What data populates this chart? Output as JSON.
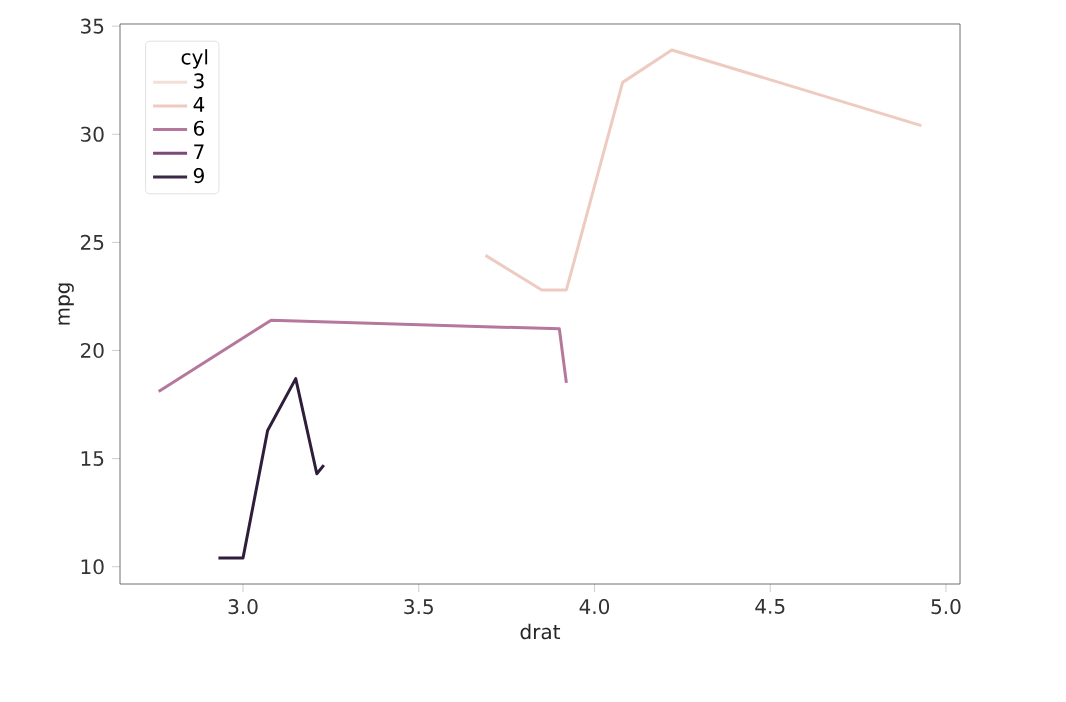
{
  "chart_data": {
    "type": "line",
    "xlabel": "drat",
    "ylabel": "mpg",
    "legend_title": "cyl",
    "legend": "top left",
    "grid": false,
    "xlim": [
      2.65,
      5.04
    ],
    "ylim": [
      9.2,
      35.1
    ],
    "xticks": [
      {
        "value": 3,
        "label": "3.0"
      },
      {
        "value": 3.5,
        "label": "3.5"
      },
      {
        "value": 4,
        "label": "4.0"
      },
      {
        "value": 4.5,
        "label": "4.5"
      },
      {
        "value": 5,
        "label": "5.0"
      }
    ],
    "yticks": [
      10,
      15,
      20,
      25,
      30,
      35
    ],
    "series": [
      {
        "name": "3",
        "color": "#f3dfd9"
      },
      {
        "name": "4",
        "color": "#eecbc1",
        "x": [
          3.69,
          3.85,
          3.92,
          4.08,
          4.22,
          4.93
        ],
        "values": [
          24.4,
          22.8,
          22.8,
          32.4,
          33.9,
          30.4
        ]
      },
      {
        "name": "6",
        "color": "#b5779c",
        "x": [
          2.76,
          3.08,
          3.9,
          3.92
        ],
        "values": [
          18.1,
          21.4,
          21.0,
          18.5
        ]
      },
      {
        "name": "7",
        "color": "#7b4a78"
      },
      {
        "name": "9",
        "color": "#3b2945"
      },
      {
        "color": "#2e1e3b",
        "x": [
          2.93,
          3.0,
          3.07,
          3.15,
          3.21,
          3.23
        ],
        "values": [
          10.4,
          10.4,
          16.3,
          18.7,
          14.3,
          14.7
        ]
      }
    ]
  }
}
